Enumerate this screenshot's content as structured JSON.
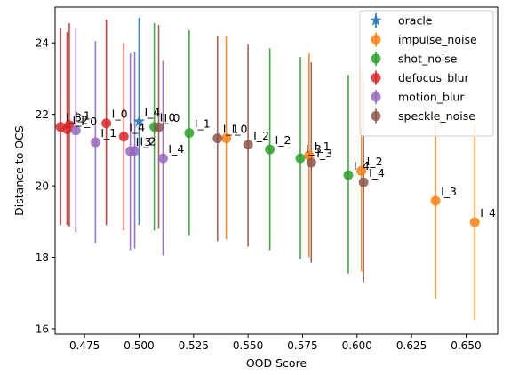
{
  "chart_data": {
    "type": "scatter",
    "title": "",
    "xlabel": "OOD Score",
    "ylabel": "Distance to OCS",
    "xlim": [
      0.4615,
      0.6645
    ],
    "ylim": [
      15.85,
      25.0
    ],
    "xticks": [
      0.475,
      0.5,
      0.525,
      0.55,
      0.575,
      0.6,
      0.625,
      0.65
    ],
    "xtick_labels": [
      "0.475",
      "0.500",
      "0.525",
      "0.550",
      "0.575",
      "0.600",
      "0.625",
      "0.650"
    ],
    "yticks": [
      16,
      18,
      20,
      22,
      24
    ],
    "ytick_labels": [
      "16",
      "18",
      "20",
      "22",
      "24"
    ],
    "grid": false,
    "legend_position": "top-right",
    "error_bars": "vertical",
    "series": [
      {
        "name": "oracle",
        "color": "#1f77b4",
        "marker": "star",
        "points": [
          {
            "x": 0.5,
            "y": 21.8,
            "err_low": 18.9,
            "err_high": 24.7,
            "label": "I_4"
          }
        ]
      },
      {
        "name": "impulse_noise",
        "color": "#ff7f0e",
        "marker": "circle",
        "points": [
          {
            "x": 0.54,
            "y": 21.33,
            "err_low": 18.5,
            "err_high": 24.2,
            "label": "I_0"
          },
          {
            "x": 0.578,
            "y": 20.85,
            "err_low": 18.0,
            "err_high": 23.7,
            "label": "I_1"
          },
          {
            "x": 0.602,
            "y": 20.42,
            "err_low": 17.6,
            "err_high": 23.25,
            "label": "I_2"
          },
          {
            "x": 0.636,
            "y": 19.58,
            "err_low": 16.85,
            "err_high": 22.3,
            "label": "I_3"
          },
          {
            "x": 0.654,
            "y": 18.98,
            "err_low": 16.25,
            "err_high": 21.75,
            "label": "I_4"
          }
        ]
      },
      {
        "name": "shot_noise",
        "color": "#2ca02c",
        "marker": "circle",
        "points": [
          {
            "x": 0.507,
            "y": 21.65,
            "err_low": 18.75,
            "err_high": 24.55,
            "label": "I_0"
          },
          {
            "x": 0.523,
            "y": 21.48,
            "err_low": 18.6,
            "err_high": 24.35,
            "label": "I_1"
          },
          {
            "x": 0.56,
            "y": 21.02,
            "err_low": 18.2,
            "err_high": 23.85,
            "label": "I_2"
          },
          {
            "x": 0.574,
            "y": 20.77,
            "err_low": 17.95,
            "err_high": 23.6,
            "label": "I_3"
          },
          {
            "x": 0.596,
            "y": 20.3,
            "err_low": 17.55,
            "err_high": 23.1,
            "label": "I_4"
          }
        ]
      },
      {
        "name": "defocus_blur",
        "color": "#d62728",
        "marker": "circle",
        "points": [
          {
            "x": 0.485,
            "y": 21.75,
            "err_low": 18.9,
            "err_high": 24.65,
            "label": "I_0"
          },
          {
            "x": 0.468,
            "y": 21.7,
            "err_low": 18.85,
            "err_high": 24.55,
            "label": "I_1"
          },
          {
            "x": 0.467,
            "y": 21.58,
            "err_low": 18.9,
            "err_high": 24.3,
            "label": "I_2"
          },
          {
            "x": 0.464,
            "y": 21.65,
            "err_low": 18.9,
            "err_high": 24.4,
            "label": "I_3"
          },
          {
            "x": 0.493,
            "y": 21.38,
            "err_low": 18.75,
            "err_high": 24.0,
            "label": "I_4"
          }
        ]
      },
      {
        "name": "motion_blur",
        "color": "#9467bd",
        "marker": "circle",
        "points": [
          {
            "x": 0.471,
            "y": 21.55,
            "err_low": 18.7,
            "err_high": 24.4,
            "label": "I_0"
          },
          {
            "x": 0.48,
            "y": 21.22,
            "err_low": 18.4,
            "err_high": 24.05,
            "label": "I_1"
          },
          {
            "x": 0.498,
            "y": 20.98,
            "err_low": 18.25,
            "err_high": 23.75,
            "label": "I_2"
          },
          {
            "x": 0.496,
            "y": 20.97,
            "err_low": 18.2,
            "err_high": 23.7,
            "label": "I_3"
          },
          {
            "x": 0.511,
            "y": 20.77,
            "err_low": 18.05,
            "err_high": 23.5,
            "label": "I_4"
          }
        ]
      },
      {
        "name": "speckle_noise",
        "color": "#8c564b",
        "marker": "circle",
        "points": [
          {
            "x": 0.509,
            "y": 21.64,
            "err_low": 18.8,
            "err_high": 24.5,
            "label": "I_0"
          },
          {
            "x": 0.536,
            "y": 21.33,
            "err_low": 18.45,
            "err_high": 24.2,
            "label": "I_1"
          },
          {
            "x": 0.55,
            "y": 21.15,
            "err_low": 18.3,
            "err_high": 23.95,
            "label": "I_2"
          },
          {
            "x": 0.579,
            "y": 20.65,
            "err_low": 17.85,
            "err_high": 23.45,
            "label": "I_3"
          },
          {
            "x": 0.603,
            "y": 20.1,
            "err_low": 17.3,
            "err_high": 22.9,
            "label": "I_4"
          }
        ]
      }
    ]
  }
}
